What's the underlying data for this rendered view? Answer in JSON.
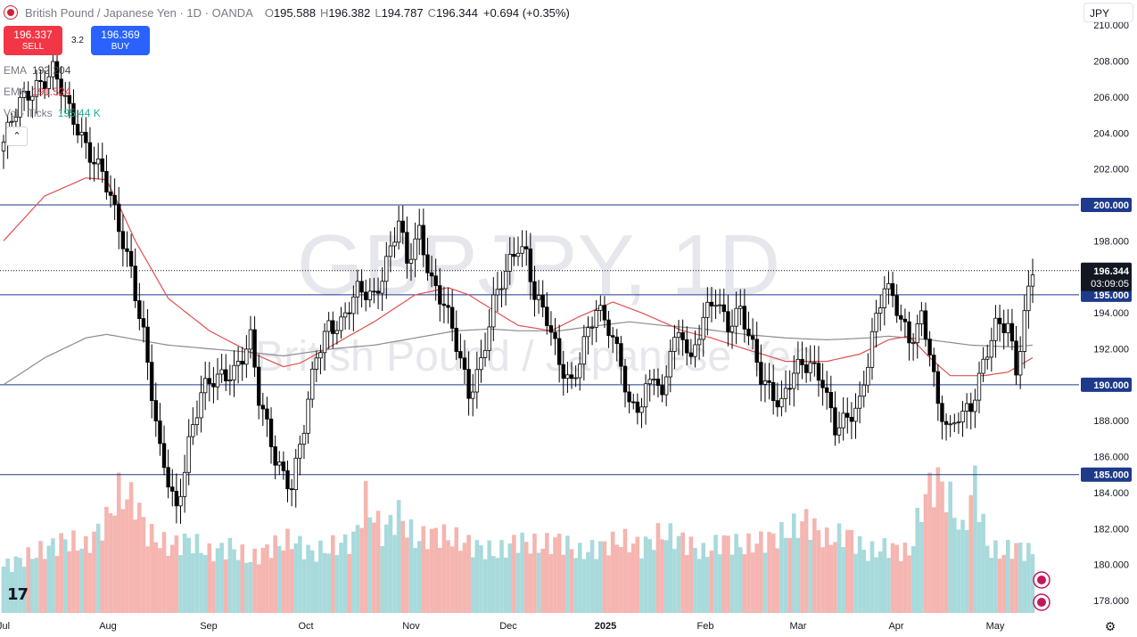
{
  "header": {
    "title": "British Pound / Japanese Yen · 1D · OANDA",
    "ohlc": [
      {
        "label": "O",
        "value": "195.588"
      },
      {
        "label": "H",
        "value": "196.382"
      },
      {
        "label": "L",
        "value": "194.787"
      },
      {
        "label": "C",
        "value": "196.344"
      }
    ],
    "change": "+0.694 (+0.35%)"
  },
  "trade": {
    "sell_price": "196.337",
    "sell_label": "SELL",
    "buy_price": "196.369",
    "buy_label": "BUY",
    "spread": "3.2"
  },
  "indicators": [
    {
      "name": "EMA",
      "value": "192.204",
      "color": "#4a4a4a"
    },
    {
      "name": "EMA",
      "value": "191.524",
      "color": "#f23645"
    },
    {
      "name": "Vol · Ticks",
      "value": "195.44 K",
      "color": "#22ab94"
    }
  ],
  "currency_selector": "JPY",
  "colors": {
    "up": "#000000",
    "down": "#000000",
    "ema_slow": "#8c8c8c",
    "ema_fast": "#e0504f",
    "vol_up": "#a8dadc",
    "vol_down": "#f5b5b0",
    "level_line": "#1e3a8a",
    "label_bg": "#1e3a8a"
  },
  "chart_data": {
    "type": "candlestick",
    "symbol": "GBPJPY",
    "timeframe": "1D",
    "watermark_main": "GBPJPY, 1D",
    "watermark_sub": "British Pound / Japanese Yen",
    "y_ticks": [
      "178.000",
      "180.000",
      "182.000",
      "184.000",
      "186.000",
      "188.000",
      "190.000",
      "192.000",
      "194.000",
      "196.000",
      "198.000",
      "200.000",
      "202.000",
      "204.000",
      "206.000",
      "208.000",
      "210.000"
    ],
    "ylim": [
      177,
      210.5
    ],
    "x_labels": [
      "Jul",
      "Aug",
      "Sep",
      "Oct",
      "Nov",
      "Dec",
      "2025",
      "Feb",
      "Mar",
      "Apr",
      "May"
    ],
    "horizontal_levels": [
      {
        "value": 200,
        "label": "200.000"
      },
      {
        "value": 195,
        "label": "195.000"
      },
      {
        "value": 190,
        "label": "190.000"
      },
      {
        "value": 185,
        "label": "185.000"
      }
    ],
    "last_price": {
      "value": 196.344,
      "label": "196.344",
      "countdown": "03:09:05"
    },
    "close_path": [
      [
        0,
        203.5
      ],
      [
        4,
        205.5
      ],
      [
        8,
        206.8
      ],
      [
        12,
        207.5
      ],
      [
        16,
        205.0
      ],
      [
        20,
        203.5
      ],
      [
        24,
        201.8
      ],
      [
        28,
        198.5
      ],
      [
        31,
        196.5
      ],
      [
        34,
        193.0
      ],
      [
        38,
        186.0
      ],
      [
        42,
        183.0
      ],
      [
        45,
        187.0
      ],
      [
        48,
        189.5
      ],
      [
        52,
        190.2
      ],
      [
        56,
        191.0
      ],
      [
        60,
        192.5
      ],
      [
        62,
        189.0
      ],
      [
        66,
        186.0
      ],
      [
        70,
        184.5
      ],
      [
        73,
        187.5
      ],
      [
        76,
        191.5
      ],
      [
        79,
        193.5
      ],
      [
        82,
        193.5
      ],
      [
        86,
        195.0
      ],
      [
        90,
        195.0
      ],
      [
        93,
        197.0
      ],
      [
        96,
        199.0
      ],
      [
        98,
        196.5
      ],
      [
        101,
        198.5
      ],
      [
        104,
        196.0
      ],
      [
        107,
        194.5
      ],
      [
        110,
        192.0
      ],
      [
        113,
        189.5
      ],
      [
        116,
        191.5
      ],
      [
        119,
        194.5
      ],
      [
        122,
        196.0
      ],
      [
        125,
        197.8
      ],
      [
        127,
        197.5
      ],
      [
        129,
        195.2
      ],
      [
        132,
        193.5
      ],
      [
        135,
        191.0
      ],
      [
        138,
        190.2
      ],
      [
        141,
        192.5
      ],
      [
        144,
        194.0
      ],
      [
        147,
        193.0
      ],
      [
        150,
        191.5
      ],
      [
        152,
        189.0
      ],
      [
        155,
        188.8
      ],
      [
        158,
        190.5
      ],
      [
        160,
        189.0
      ],
      [
        162,
        192.5
      ],
      [
        165,
        193.0
      ],
      [
        167,
        191.0
      ],
      [
        170,
        193.5
      ],
      [
        173,
        195.0
      ],
      [
        176,
        193.5
      ],
      [
        179,
        194.0
      ],
      [
        181,
        192.5
      ],
      [
        184,
        190.5
      ],
      [
        186,
        190.0
      ],
      [
        189,
        189.0
      ],
      [
        192,
        190.5
      ],
      [
        196,
        191.2
      ],
      [
        199,
        190.5
      ],
      [
        202,
        187.5
      ],
      [
        205,
        187.8
      ],
      [
        208,
        189.0
      ],
      [
        211,
        193.0
      ],
      [
        214,
        195.5
      ],
      [
        217,
        194.0
      ],
      [
        220,
        192.5
      ],
      [
        223,
        194.0
      ],
      [
        225,
        192.0
      ],
      [
        227,
        188.5
      ],
      [
        230,
        187.2
      ],
      [
        232,
        188.5
      ],
      [
        235,
        189.0
      ],
      [
        238,
        191.0
      ],
      [
        241,
        193.0
      ],
      [
        244,
        193.5
      ],
      [
        246,
        191.0
      ],
      [
        248,
        194.0
      ],
      [
        250,
        196.3
      ]
    ],
    "ema_fast": [
      [
        0,
        198.0
      ],
      [
        10,
        200.5
      ],
      [
        20,
        201.5
      ],
      [
        25,
        201.4
      ],
      [
        28,
        200.0
      ],
      [
        32,
        198.0
      ],
      [
        40,
        194.8
      ],
      [
        50,
        193.0
      ],
      [
        60,
        191.8
      ],
      [
        68,
        191.0
      ],
      [
        72,
        191.2
      ],
      [
        80,
        192.2
      ],
      [
        90,
        193.5
      ],
      [
        100,
        195.0
      ],
      [
        108,
        195.4
      ],
      [
        113,
        195.0
      ],
      [
        120,
        194.0
      ],
      [
        125,
        193.3
      ],
      [
        133,
        193.0
      ],
      [
        140,
        193.8
      ],
      [
        148,
        194.6
      ],
      [
        155,
        194.0
      ],
      [
        165,
        193.0
      ],
      [
        172,
        192.6
      ],
      [
        180,
        192.0
      ],
      [
        190,
        191.3
      ],
      [
        200,
        191.3
      ],
      [
        208,
        191.7
      ],
      [
        215,
        192.5
      ],
      [
        220,
        192.7
      ],
      [
        225,
        191.5
      ],
      [
        230,
        190.5
      ],
      [
        238,
        190.5
      ],
      [
        244,
        190.7
      ],
      [
        250,
        191.5
      ]
    ],
    "ema_slow": [
      [
        0,
        190.0
      ],
      [
        10,
        191.5
      ],
      [
        20,
        192.6
      ],
      [
        25,
        192.8
      ],
      [
        30,
        192.6
      ],
      [
        40,
        192.2
      ],
      [
        50,
        192.0
      ],
      [
        60,
        191.8
      ],
      [
        68,
        191.6
      ],
      [
        80,
        192.0
      ],
      [
        90,
        192.2
      ],
      [
        100,
        192.6
      ],
      [
        110,
        193.0
      ],
      [
        118,
        193.1
      ],
      [
        125,
        193.0
      ],
      [
        135,
        193.0
      ],
      [
        145,
        193.3
      ],
      [
        152,
        193.5
      ],
      [
        160,
        193.3
      ],
      [
        170,
        193.1
      ],
      [
        180,
        192.8
      ],
      [
        190,
        192.6
      ],
      [
        200,
        192.5
      ],
      [
        210,
        192.6
      ],
      [
        215,
        192.7
      ],
      [
        225,
        192.5
      ],
      [
        235,
        192.2
      ],
      [
        245,
        192.1
      ],
      [
        250,
        192.2
      ]
    ],
    "volume_profile": [
      [
        0,
        0.35
      ],
      [
        8,
        0.45
      ],
      [
        15,
        0.55
      ],
      [
        20,
        0.5
      ],
      [
        25,
        0.7
      ],
      [
        28,
        0.9
      ],
      [
        32,
        0.85
      ],
      [
        35,
        0.6
      ],
      [
        40,
        0.5
      ],
      [
        45,
        0.55
      ],
      [
        50,
        0.45
      ],
      [
        55,
        0.5
      ],
      [
        60,
        0.4
      ],
      [
        65,
        0.5
      ],
      [
        70,
        0.55
      ],
      [
        75,
        0.45
      ],
      [
        80,
        0.5
      ],
      [
        85,
        0.55
      ],
      [
        88,
        0.85
      ],
      [
        92,
        0.6
      ],
      [
        96,
        0.75
      ],
      [
        100,
        0.55
      ],
      [
        105,
        0.6
      ],
      [
        110,
        0.55
      ],
      [
        115,
        0.5
      ],
      [
        120,
        0.45
      ],
      [
        125,
        0.55
      ],
      [
        130,
        0.5
      ],
      [
        135,
        0.55
      ],
      [
        140,
        0.45
      ],
      [
        145,
        0.5
      ],
      [
        150,
        0.55
      ],
      [
        155,
        0.5
      ],
      [
        160,
        0.6
      ],
      [
        165,
        0.55
      ],
      [
        170,
        0.45
      ],
      [
        175,
        0.55
      ],
      [
        180,
        0.5
      ],
      [
        185,
        0.55
      ],
      [
        190,
        0.6
      ],
      [
        195,
        0.7
      ],
      [
        200,
        0.55
      ],
      [
        205,
        0.6
      ],
      [
        210,
        0.45
      ],
      [
        215,
        0.5
      ],
      [
        220,
        0.45
      ],
      [
        224,
        0.9
      ],
      [
        227,
        1.0
      ],
      [
        230,
        0.85
      ],
      [
        233,
        0.6
      ],
      [
        236,
        1.0
      ],
      [
        239,
        0.5
      ],
      [
        242,
        0.45
      ],
      [
        246,
        0.5
      ],
      [
        250,
        0.45
      ]
    ]
  }
}
